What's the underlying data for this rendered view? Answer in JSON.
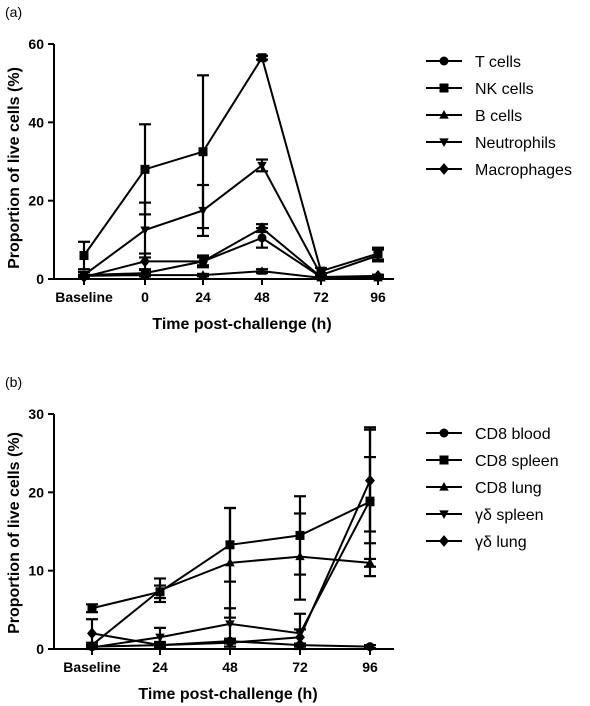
{
  "chart_data": [
    {
      "panel_label": "(a)",
      "type": "line",
      "xlabel": "Time post-challenge (h)",
      "ylabel": "Proportion of live cells (%)",
      "x_categories": [
        "Baseline",
        "0",
        "24",
        "48",
        "72",
        "96"
      ],
      "ylim": [
        0,
        60
      ],
      "yticks": [
        0,
        20,
        40,
        60
      ],
      "grid": false,
      "legend_position": "right",
      "series": [
        {
          "name": "T cells",
          "marker": "circle",
          "values": [
            1.0,
            1.5,
            4.5,
            10.5,
            0.5,
            0.5
          ],
          "errors": [
            0.8,
            0.8,
            1.5,
            2.5,
            0.3,
            0.3
          ]
        },
        {
          "name": "NK cells",
          "marker": "square",
          "values": [
            6.0,
            28.0,
            32.5,
            56.5,
            2.0,
            6.5
          ],
          "errors": [
            3.5,
            11.5,
            19.5,
            0.5,
            0.8,
            1.5
          ]
        },
        {
          "name": "B cells",
          "marker": "triangle-up",
          "values": [
            0.8,
            1.0,
            1.0,
            2.0,
            0.3,
            0.3
          ],
          "errors": [
            0.3,
            0.3,
            0.3,
            0.5,
            0.2,
            0.2
          ]
        },
        {
          "name": "Neutrophils",
          "marker": "triangle-down",
          "values": [
            1.0,
            12.5,
            17.5,
            29.0,
            1.0,
            6.0
          ],
          "errors": [
            0.8,
            7.0,
            6.5,
            1.5,
            0.5,
            1.5
          ]
        },
        {
          "name": "Macrophages",
          "marker": "diamond",
          "values": [
            0.5,
            4.5,
            4.5,
            13.0,
            0.5,
            0.8
          ],
          "errors": [
            0.3,
            2.0,
            1.0,
            1.0,
            0.3,
            0.3
          ]
        }
      ]
    },
    {
      "panel_label": "(b)",
      "type": "line",
      "xlabel": "Time post-challenge (h)",
      "ylabel": "Proportion of live cells (%)",
      "x_categories": [
        "Baseline",
        "24",
        "48",
        "72",
        "96"
      ],
      "ylim": [
        0,
        30
      ],
      "yticks": [
        0,
        10,
        20,
        30
      ],
      "grid": false,
      "legend_position": "right",
      "series": [
        {
          "name": "CD8 blood",
          "marker": "circle",
          "values": [
            0.3,
            0.5,
            1.0,
            0.5,
            0.3
          ],
          "errors": [
            0.2,
            0.3,
            0.3,
            0.2,
            0.2
          ]
        },
        {
          "name": "CD8 spleen",
          "marker": "square",
          "values": [
            5.2,
            7.3,
            13.3,
            14.5,
            18.8
          ],
          "errors": [
            0.5,
            0.8,
            4.7,
            5.0,
            9.5
          ]
        },
        {
          "name": "CD8 lung",
          "marker": "triangle-up",
          "values": [
            0.5,
            7.5,
            11.0,
            11.8,
            11.0
          ],
          "errors": [
            0.3,
            1.5,
            7.0,
            5.5,
            0.5
          ]
        },
        {
          "name": "γδ spleen",
          "marker": "triangle-down",
          "values": [
            0.2,
            1.5,
            3.2,
            2.0,
            19.0
          ],
          "errors": [
            0.2,
            1.2,
            2.0,
            2.5,
            5.5
          ]
        },
        {
          "name": "γδ lung",
          "marker": "diamond",
          "values": [
            2.0,
            0.5,
            0.8,
            1.5,
            21.5
          ],
          "errors": [
            1.8,
            0.4,
            0.5,
            1.0,
            6.5
          ]
        }
      ]
    }
  ]
}
